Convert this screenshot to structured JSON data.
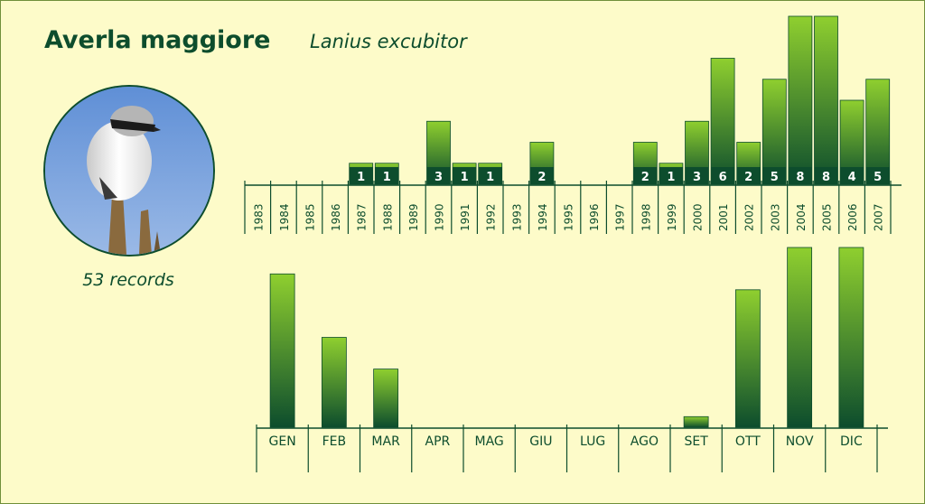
{
  "header": {
    "title": "Averla maggiore",
    "subtitle": "Lanius excubitor"
  },
  "photo": {
    "alt": "Averla maggiore (Lanius excubitor)"
  },
  "records_label": "53 records",
  "colors": {
    "background": "#fdfbc9",
    "bar_top": "#8fcf2f",
    "bar_bottom": "#0d4d2d",
    "text": "#0d4d2d"
  },
  "chart_data": [
    {
      "type": "bar",
      "categories": [
        "1983",
        "1984",
        "1985",
        "1986",
        "1987",
        "1988",
        "1989",
        "1990",
        "1991",
        "1992",
        "1993",
        "1994",
        "1995",
        "1996",
        "1997",
        "1998",
        "1999",
        "2000",
        "2001",
        "2002",
        "2003",
        "2004",
        "2005",
        "2006",
        "2007"
      ],
      "values": [
        0,
        0,
        0,
        0,
        1,
        1,
        0,
        3,
        1,
        1,
        0,
        2,
        0,
        0,
        0,
        2,
        1,
        3,
        6,
        2,
        5,
        8,
        8,
        4,
        5
      ],
      "data_labels": [
        "",
        "",
        "",
        "",
        "1",
        "1",
        "",
        "3",
        "1",
        "1",
        "",
        "2",
        "",
        "",
        "",
        "2",
        "1",
        "3",
        "6",
        "2",
        "5",
        "8",
        "8",
        "4",
        "5"
      ],
      "ylim": [
        0,
        8
      ],
      "grid": false
    },
    {
      "type": "bar",
      "categories": [
        "GEN",
        "FEB",
        "MAR",
        "APR",
        "MAG",
        "GIU",
        "LUG",
        "AGO",
        "SET",
        "OTT",
        "NOV",
        "DIC"
      ],
      "values": [
        14.5,
        8.5,
        5.5,
        0,
        0,
        0,
        0,
        0,
        1,
        13,
        17,
        17
      ],
      "ylim": [
        0,
        17
      ],
      "grid": false
    }
  ]
}
